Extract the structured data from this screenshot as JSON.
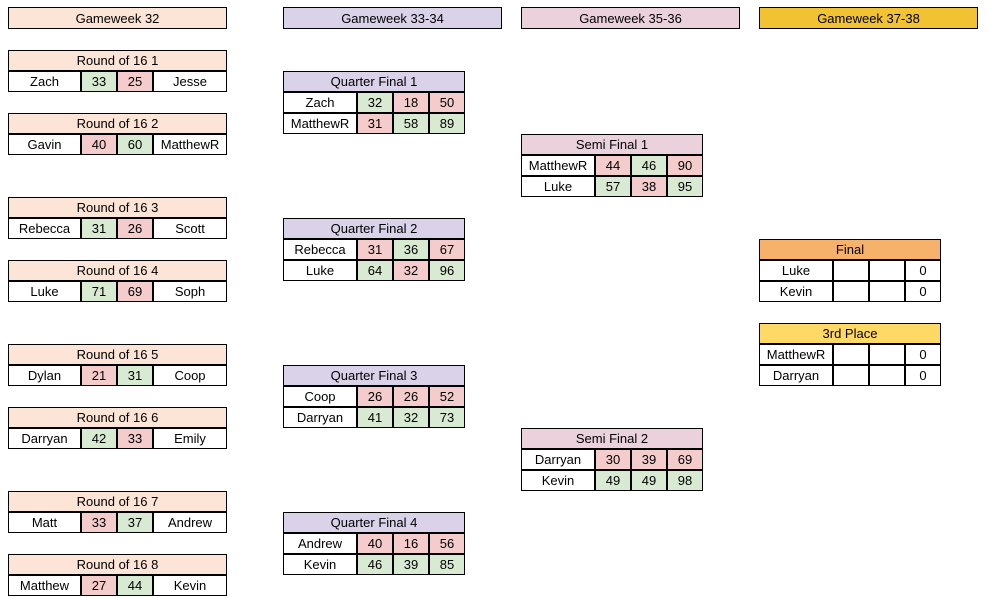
{
  "colors": {
    "header_r16": "#fce4d6",
    "header_qf": "#d9d2e9",
    "header_sf": "#ead1dc",
    "header_final_gw": "#f1c232",
    "header_final": "#f6b26b",
    "header_third": "#ffd966",
    "win": "#d9ead3",
    "lose": "#f4cccc",
    "neutral": "#ffffff"
  },
  "gameweeks": [
    "Gameweek 32",
    "Gameweek 33-34",
    "Gameweek 35-36",
    "Gameweek 37-38"
  ],
  "round16": [
    {
      "title": "Round of 16 1",
      "p1": "Zach",
      "s1": "33",
      "s2": "25",
      "p2": "Jesse"
    },
    {
      "title": "Round of 16 2",
      "p1": "Gavin",
      "s1": "40",
      "s2": "60",
      "p2": "MatthewR"
    },
    {
      "title": "Round of 16 3",
      "p1": "Rebecca",
      "s1": "31",
      "s2": "26",
      "p2": "Scott"
    },
    {
      "title": "Round of 16 4",
      "p1": "Luke",
      "s1": "71",
      "s2": "69",
      "p2": "Soph"
    },
    {
      "title": "Round of 16 5",
      "p1": "Dylan",
      "s1": "21",
      "s2": "31",
      "p2": "Coop"
    },
    {
      "title": "Round of 16 6",
      "p1": "Darryan",
      "s1": "42",
      "s2": "33",
      "p2": "Emily"
    },
    {
      "title": "Round of 16 7",
      "p1": "Matt",
      "s1": "33",
      "s2": "37",
      "p2": "Andrew"
    },
    {
      "title": "Round of 16 8",
      "p1": "Matthew",
      "s1": "27",
      "s2": "44",
      "p2": "Kevin"
    }
  ],
  "quarter_finals": [
    {
      "title": "Quarter Final 1",
      "rows": [
        {
          "name": "Zach",
          "a": "32",
          "b": "18",
          "total": "50"
        },
        {
          "name": "MatthewR",
          "a": "31",
          "b": "58",
          "total": "89"
        }
      ]
    },
    {
      "title": "Quarter Final 2",
      "rows": [
        {
          "name": "Rebecca",
          "a": "31",
          "b": "36",
          "total": "67"
        },
        {
          "name": "Luke",
          "a": "64",
          "b": "32",
          "total": "96"
        }
      ]
    },
    {
      "title": "Quarter Final 3",
      "rows": [
        {
          "name": "Coop",
          "a": "26",
          "b": "26",
          "total": "52"
        },
        {
          "name": "Darryan",
          "a": "41",
          "b": "32",
          "total": "73"
        }
      ]
    },
    {
      "title": "Quarter Final 4",
      "rows": [
        {
          "name": "Andrew",
          "a": "40",
          "b": "16",
          "total": "56"
        },
        {
          "name": "Kevin",
          "a": "46",
          "b": "39",
          "total": "85"
        }
      ]
    }
  ],
  "semi_finals": [
    {
      "title": "Semi Final 1",
      "rows": [
        {
          "name": "MatthewR",
          "a": "44",
          "b": "46",
          "total": "90"
        },
        {
          "name": "Luke",
          "a": "57",
          "b": "38",
          "total": "95"
        }
      ]
    },
    {
      "title": "Semi Final 2",
      "rows": [
        {
          "name": "Darryan",
          "a": "30",
          "b": "39",
          "total": "69"
        },
        {
          "name": "Kevin",
          "a": "49",
          "b": "49",
          "total": "98"
        }
      ]
    }
  ],
  "final": {
    "title": "Final",
    "rows": [
      {
        "name": "Luke",
        "a": "",
        "b": "",
        "total": "0"
      },
      {
        "name": "Kevin",
        "a": "",
        "b": "",
        "total": "0"
      }
    ]
  },
  "third_place": {
    "title": "3rd Place",
    "rows": [
      {
        "name": "MatthewR",
        "a": "",
        "b": "",
        "total": "0"
      },
      {
        "name": "Darryan",
        "a": "",
        "b": "",
        "total": "0"
      }
    ]
  }
}
